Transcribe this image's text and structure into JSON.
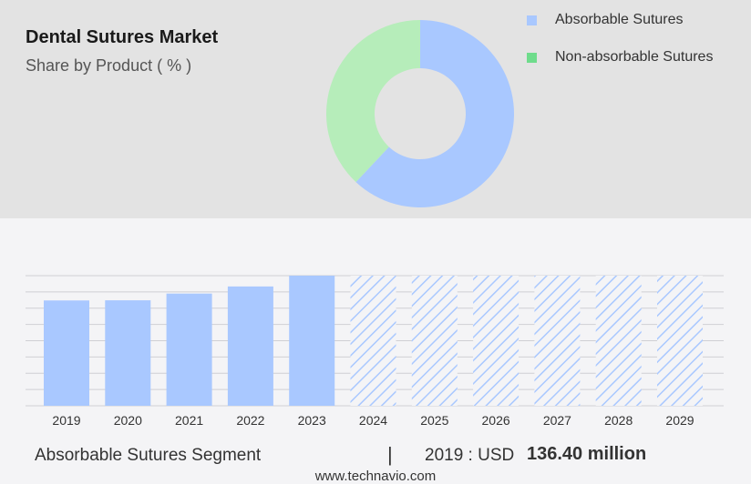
{
  "chart_data": [
    {
      "type": "pie",
      "title": "Dental Sutures Market",
      "subtitle": "Share by Product ( % )",
      "donut": true,
      "slices": [
        {
          "name": "Absorbable Sutures",
          "value": 62,
          "color": "#a9c8ff"
        },
        {
          "name": "Non-absorbable Sutures",
          "value": 38,
          "color": "#b6edba"
        }
      ],
      "legend_swatch_colors": [
        "#a9c8ff",
        "#6fdc8c"
      ],
      "legend_position": "top-right"
    },
    {
      "type": "bar",
      "categories": [
        "2019",
        "2020",
        "2021",
        "2022",
        "2023",
        "2024",
        "2025",
        "2026",
        "2027",
        "2028",
        "2029"
      ],
      "values": [
        136.4,
        136.6,
        145.3,
        154.5,
        168.5,
        null,
        null,
        null,
        null,
        null,
        null
      ],
      "forecast_categories": [
        "2024",
        "2025",
        "2026",
        "2027",
        "2028",
        "2029"
      ],
      "bar_color": "#a9c8ff",
      "forecast_hatch_color": "#a9c8ff",
      "ylim": [
        0,
        168.5
      ],
      "grid": true,
      "gridline_count": 8
    }
  ],
  "footer": {
    "segment_label": "Absorbable Sutures Segment",
    "separator": "|",
    "year_text": "2019 : USD",
    "value_text": "136.40 million",
    "url": "www.technavio.com"
  }
}
